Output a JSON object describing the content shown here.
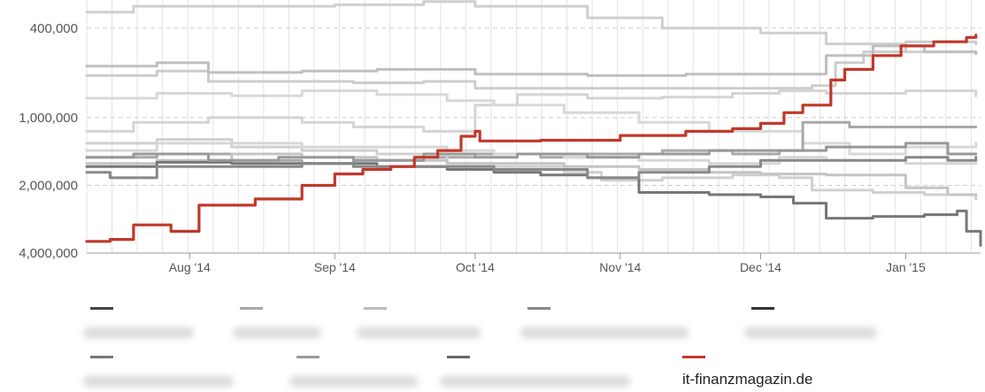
{
  "chart_data": {
    "type": "line",
    "y_scale": "log",
    "y_reversed": true,
    "ylim": [
      300000,
      4000000
    ],
    "xlim": [
      "2014-07-10",
      "2015-01-17"
    ],
    "yticks": [
      {
        "value": 400000,
        "label": "400,000"
      },
      {
        "value": 1000000,
        "label": "1,000,000"
      },
      {
        "value": 2000000,
        "label": "2,000,000"
      },
      {
        "value": 4000000,
        "label": "4,000,000"
      }
    ],
    "xticks": [
      {
        "date": "2014-08-01",
        "label": "Aug '14"
      },
      {
        "date": "2014-09-01",
        "label": "Sep '14"
      },
      {
        "date": "2014-10-01",
        "label": "Oct '14"
      },
      {
        "date": "2014-11-01",
        "label": "Nov '14"
      },
      {
        "date": "2014-12-01",
        "label": "Dec '14"
      },
      {
        "date": "2015-01-01",
        "label": "Jan '15"
      }
    ],
    "grid": true,
    "legend_position": "bottom",
    "series": [
      {
        "name": "it-finanzmagazin.de",
        "color": "#c0392b",
        "highlight": true,
        "points": [
          [
            "2014-07-10",
            3550000
          ],
          [
            "2014-07-15",
            3480000
          ],
          [
            "2014-07-20",
            3000000
          ],
          [
            "2014-07-28",
            3200000
          ],
          [
            "2014-08-03",
            2450000
          ],
          [
            "2014-08-15",
            2300000
          ],
          [
            "2014-08-25",
            2000000
          ],
          [
            "2014-09-01",
            1780000
          ],
          [
            "2014-09-07",
            1700000
          ],
          [
            "2014-09-13",
            1650000
          ],
          [
            "2014-09-18",
            1500000
          ],
          [
            "2014-09-23",
            1400000
          ],
          [
            "2014-09-28",
            1210000
          ],
          [
            "2014-10-01",
            1150000
          ],
          [
            "2014-10-02",
            1270000
          ],
          [
            "2014-10-15",
            1260000
          ],
          [
            "2014-11-01",
            1200000
          ],
          [
            "2014-11-15",
            1150000
          ],
          [
            "2014-11-25",
            1120000
          ],
          [
            "2014-12-01",
            1060000
          ],
          [
            "2014-12-06",
            950000
          ],
          [
            "2014-12-10",
            880000
          ],
          [
            "2014-12-13",
            880000
          ],
          [
            "2014-12-16",
            680000
          ],
          [
            "2014-12-19",
            610000
          ],
          [
            "2014-12-25",
            530000
          ],
          [
            "2014-12-31",
            480000
          ],
          [
            "2015-01-07",
            460000
          ],
          [
            "2015-01-14",
            440000
          ],
          [
            "2015-01-16",
            430000
          ]
        ]
      },
      {
        "name": "",
        "color": "#cfcfcf",
        "points": [
          [
            "2014-07-10",
            340000
          ],
          [
            "2014-07-20",
            320000
          ],
          [
            "2014-08-10",
            320000
          ],
          [
            "2014-09-01",
            315000
          ],
          [
            "2014-09-20",
            305000
          ],
          [
            "2014-10-01",
            320000
          ],
          [
            "2014-10-25",
            360000
          ],
          [
            "2014-11-10",
            400000
          ],
          [
            "2014-12-01",
            420000
          ],
          [
            "2014-12-15",
            470000
          ],
          [
            "2015-01-01",
            510000
          ],
          [
            "2015-01-16",
            520000
          ]
        ]
      },
      {
        "name": "",
        "color": "#cccccc",
        "points": [
          [
            "2014-07-10",
            650000
          ],
          [
            "2014-07-25",
            620000
          ],
          [
            "2014-08-05",
            690000
          ],
          [
            "2014-08-20",
            690000
          ],
          [
            "2014-09-05",
            700000
          ],
          [
            "2014-09-20",
            690000
          ],
          [
            "2014-10-01",
            740000
          ],
          [
            "2014-10-20",
            740000
          ],
          [
            "2014-11-10",
            740000
          ],
          [
            "2014-12-01",
            740000
          ],
          [
            "2014-12-12",
            720000
          ],
          [
            "2014-12-17",
            570000
          ],
          [
            "2014-12-23",
            510000
          ],
          [
            "2015-01-01",
            460000
          ],
          [
            "2015-01-16",
            470000
          ]
        ]
      },
      {
        "name": "",
        "color": "#bfbfbf",
        "points": [
          [
            "2014-07-10",
            590000
          ],
          [
            "2014-07-25",
            570000
          ],
          [
            "2014-08-05",
            630000
          ],
          [
            "2014-08-25",
            620000
          ],
          [
            "2014-09-10",
            610000
          ],
          [
            "2014-10-01",
            640000
          ],
          [
            "2014-10-25",
            650000
          ],
          [
            "2014-11-15",
            640000
          ],
          [
            "2014-12-01",
            640000
          ],
          [
            "2014-12-15",
            530000
          ],
          [
            "2014-12-25",
            480000
          ],
          [
            "2015-01-05",
            510000
          ],
          [
            "2015-01-16",
            520000
          ]
        ]
      },
      {
        "name": "",
        "color": "#d4d4d4",
        "points": [
          [
            "2014-07-10",
            1150000
          ],
          [
            "2014-07-20",
            1050000
          ],
          [
            "2014-08-05",
            1000000
          ],
          [
            "2014-08-25",
            1050000
          ],
          [
            "2014-09-05",
            1100000
          ],
          [
            "2014-09-20",
            1150000
          ],
          [
            "2014-10-01",
            880000
          ],
          [
            "2014-10-10",
            790000
          ],
          [
            "2014-10-25",
            820000
          ],
          [
            "2014-11-10",
            810000
          ],
          [
            "2014-11-25",
            780000
          ],
          [
            "2014-12-05",
            760000
          ],
          [
            "2014-12-15",
            780000
          ],
          [
            "2015-01-01",
            760000
          ],
          [
            "2015-01-16",
            800000
          ]
        ]
      },
      {
        "name": "",
        "color": "#d8d8d8",
        "points": [
          [
            "2014-07-10",
            820000
          ],
          [
            "2014-07-25",
            780000
          ],
          [
            "2014-08-10",
            800000
          ],
          [
            "2014-08-25",
            760000
          ],
          [
            "2014-09-10",
            790000
          ],
          [
            "2014-09-25",
            840000
          ],
          [
            "2014-10-05",
            880000
          ],
          [
            "2014-10-20",
            950000
          ],
          [
            "2014-11-05",
            1050000
          ],
          [
            "2014-11-20",
            1150000
          ],
          [
            "2014-12-01",
            1150000
          ],
          [
            "2014-12-10",
            1300000
          ],
          [
            "2014-12-20",
            1450000
          ],
          [
            "2015-01-01",
            1350000
          ],
          [
            "2015-01-16",
            1300000
          ]
        ]
      },
      {
        "name": "",
        "color": "#a8a8a8",
        "points": [
          [
            "2014-07-10",
            1500000
          ],
          [
            "2014-07-25",
            1450000
          ],
          [
            "2014-08-10",
            1550000
          ],
          [
            "2014-08-25",
            1600000
          ],
          [
            "2014-09-05",
            1550000
          ],
          [
            "2014-09-20",
            1500000
          ],
          [
            "2014-10-01",
            1450000
          ],
          [
            "2014-10-15",
            1500000
          ],
          [
            "2014-10-25",
            1450000
          ],
          [
            "2014-11-10",
            1400000
          ],
          [
            "2014-11-25",
            1450000
          ],
          [
            "2014-12-05",
            1400000
          ],
          [
            "2014-12-10",
            1050000
          ],
          [
            "2014-12-20",
            1100000
          ],
          [
            "2015-01-01",
            1100000
          ],
          [
            "2015-01-16",
            1100000
          ]
        ]
      },
      {
        "name": "",
        "color": "#d0d0d0",
        "points": [
          [
            "2014-07-10",
            1300000
          ],
          [
            "2014-07-25",
            1250000
          ],
          [
            "2014-08-10",
            1350000
          ],
          [
            "2014-08-25",
            1400000
          ],
          [
            "2014-09-10",
            1450000
          ],
          [
            "2014-09-25",
            1600000
          ],
          [
            "2014-10-05",
            1650000
          ],
          [
            "2014-10-20",
            1750000
          ],
          [
            "2014-10-28",
            1900000
          ],
          [
            "2014-11-10",
            1850000
          ],
          [
            "2014-11-25",
            1800000
          ],
          [
            "2014-12-05",
            1850000
          ],
          [
            "2014-12-12",
            2100000
          ],
          [
            "2014-12-25",
            2150000
          ],
          [
            "2015-01-05",
            2200000
          ],
          [
            "2015-01-16",
            2300000
          ]
        ]
      },
      {
        "name": "",
        "color": "#c4c4c4",
        "points": [
          [
            "2014-07-10",
            1600000
          ],
          [
            "2014-07-25",
            1550000
          ],
          [
            "2014-08-10",
            1450000
          ],
          [
            "2014-08-25",
            1500000
          ],
          [
            "2014-09-10",
            1550000
          ],
          [
            "2014-09-25",
            1600000
          ],
          [
            "2014-10-05",
            1600000
          ],
          [
            "2014-10-20",
            1650000
          ],
          [
            "2014-11-05",
            1700000
          ],
          [
            "2014-11-20",
            1750000
          ],
          [
            "2014-12-01",
            1780000
          ],
          [
            "2014-12-15",
            1800000
          ],
          [
            "2015-01-01",
            2050000
          ],
          [
            "2015-01-10",
            2200000
          ],
          [
            "2015-01-16",
            2200000
          ]
        ]
      },
      {
        "name": "",
        "color": "#d6d6d6",
        "points": [
          [
            "2014-07-10",
            1400000
          ],
          [
            "2014-07-25",
            1300000
          ],
          [
            "2014-08-10",
            1300000
          ],
          [
            "2014-08-25",
            1350000
          ],
          [
            "2014-09-10",
            1350000
          ],
          [
            "2014-09-25",
            1400000
          ],
          [
            "2014-10-05",
            1450000
          ],
          [
            "2014-10-20",
            1500000
          ],
          [
            "2014-11-05",
            1550000
          ],
          [
            "2014-11-20",
            1600000
          ],
          [
            "2014-12-05",
            1500000
          ],
          [
            "2014-12-15",
            1550000
          ],
          [
            "2015-01-01",
            1600000
          ],
          [
            "2015-01-16",
            1550000
          ]
        ]
      },
      {
        "name": "",
        "color": "#777777",
        "points": [
          [
            "2014-07-10",
            1650000
          ],
          [
            "2014-07-25",
            1580000
          ],
          [
            "2014-08-10",
            1600000
          ],
          [
            "2014-08-25",
            1600000
          ],
          [
            "2014-09-10",
            1650000
          ],
          [
            "2014-09-25",
            1700000
          ],
          [
            "2014-10-05",
            1750000
          ],
          [
            "2014-10-15",
            1800000
          ],
          [
            "2014-10-25",
            1850000
          ],
          [
            "2014-11-05",
            2150000
          ],
          [
            "2014-11-20",
            2200000
          ],
          [
            "2014-12-01",
            2250000
          ],
          [
            "2014-12-08",
            2400000
          ],
          [
            "2014-12-15",
            2800000
          ],
          [
            "2014-12-25",
            2750000
          ],
          [
            "2015-01-05",
            2700000
          ],
          [
            "2015-01-12",
            2600000
          ],
          [
            "2015-01-14",
            3200000
          ],
          [
            "2015-01-17",
            3700000
          ]
        ]
      },
      {
        "name": "",
        "color": "#999999",
        "points": [
          [
            "2014-07-10",
            1500000
          ],
          [
            "2014-07-20",
            1450000
          ],
          [
            "2014-08-05",
            1550000
          ],
          [
            "2014-08-20",
            1500000
          ],
          [
            "2014-09-05",
            1550000
          ],
          [
            "2014-09-20",
            1450000
          ],
          [
            "2014-10-01",
            1500000
          ],
          [
            "2014-10-10",
            1450000
          ],
          [
            "2014-10-25",
            1500000
          ],
          [
            "2014-11-05",
            1450000
          ],
          [
            "2014-11-20",
            1400000
          ],
          [
            "2014-12-01",
            1400000
          ],
          [
            "2014-12-15",
            1350000
          ],
          [
            "2015-01-01",
            1300000
          ],
          [
            "2015-01-10",
            1450000
          ],
          [
            "2015-01-16",
            1450000
          ]
        ]
      },
      {
        "name": "",
        "color": "#888888",
        "points": [
          [
            "2014-07-10",
            1750000
          ],
          [
            "2014-07-15",
            1850000
          ],
          [
            "2014-07-25",
            1650000
          ],
          [
            "2014-08-10",
            1650000
          ],
          [
            "2014-08-25",
            1600000
          ],
          [
            "2014-09-05",
            1650000
          ],
          [
            "2014-09-25",
            1650000
          ],
          [
            "2014-10-05",
            1700000
          ],
          [
            "2014-10-20",
            1700000
          ],
          [
            "2014-10-25",
            1850000
          ],
          [
            "2014-11-05",
            1750000
          ],
          [
            "2014-11-20",
            1650000
          ],
          [
            "2014-12-01",
            1550000
          ],
          [
            "2014-12-15",
            1550000
          ],
          [
            "2015-01-01",
            1500000
          ],
          [
            "2015-01-10",
            1550000
          ],
          [
            "2015-01-16",
            1500000
          ]
        ]
      }
    ]
  },
  "legend": {
    "items": [
      {
        "color": "#444444"
      },
      {
        "color": "#a8a8a8"
      },
      {
        "color": "#bdbdbd"
      },
      {
        "color": "#888888"
      },
      {
        "color": "#333333"
      },
      {
        "color": "#777777"
      },
      {
        "color": "#999999"
      },
      {
        "color": "#666666"
      },
      {
        "color": "#c0392b",
        "label": "it-finanzmagazin.de"
      }
    ]
  }
}
